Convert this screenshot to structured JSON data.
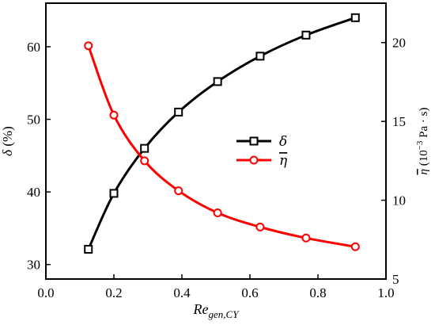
{
  "chart_data": {
    "type": "line",
    "x": [
      0.125,
      0.2,
      0.29,
      0.39,
      0.505,
      0.63,
      0.765,
      0.91
    ],
    "xlim": [
      0.0,
      1.0
    ],
    "xticks": [
      "0.0",
      "0.2",
      "0.4",
      "0.6",
      "0.8",
      "1.0"
    ],
    "xlabel": {
      "base": "Re",
      "sub": "gen,CY"
    },
    "y_left": {
      "lim": [
        28,
        66
      ],
      "ticks": [
        "30",
        "40",
        "50",
        "60"
      ],
      "label": {
        "sym": "δ",
        "rest": " (%)"
      }
    },
    "y_right": {
      "lim": [
        5,
        22.5
      ],
      "ticks": [
        "5",
        "10",
        "15",
        "20"
      ],
      "label": {
        "sym": "η",
        "rest": " (10",
        "sup": "−3",
        "unit": " Pa · s)"
      }
    },
    "series": [
      {
        "name": "δ",
        "axis": "left",
        "color": "#000000",
        "marker": "square",
        "values": [
          32.1,
          39.8,
          46.0,
          51.0,
          55.2,
          58.7,
          61.6,
          64.0
        ]
      },
      {
        "name": "η",
        "axis": "right",
        "color": "#ff0000",
        "marker": "circle",
        "values": [
          19.8,
          15.4,
          12.5,
          10.6,
          9.2,
          8.3,
          7.6,
          7.05
        ]
      }
    ],
    "legend": {
      "placement": "center-right"
    },
    "grid": false
  }
}
